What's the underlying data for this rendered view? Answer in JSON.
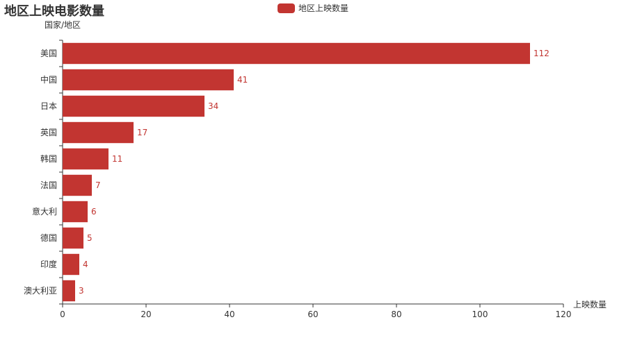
{
  "chart_data": {
    "type": "bar",
    "orientation": "horizontal",
    "title": "地区上映电影数量",
    "legend": {
      "label": "地区上映数量",
      "placement": "top-center"
    },
    "xlabel": "上映数量",
    "ylabel": "国家/地区",
    "categories": [
      "美国",
      "中国",
      "日本",
      "英国",
      "韩国",
      "法国",
      "意大利",
      "德国",
      "印度",
      "澳大利亚"
    ],
    "series": [
      {
        "name": "地区上映数量",
        "values": [
          112,
          41,
          34,
          17,
          11,
          7,
          6,
          5,
          4,
          3
        ]
      }
    ],
    "xlim": [
      0,
      120
    ],
    "xticks": [
      0,
      20,
      40,
      60,
      80,
      100,
      120
    ],
    "grid": false,
    "bar_color": "#c23531",
    "data_labels": true
  }
}
